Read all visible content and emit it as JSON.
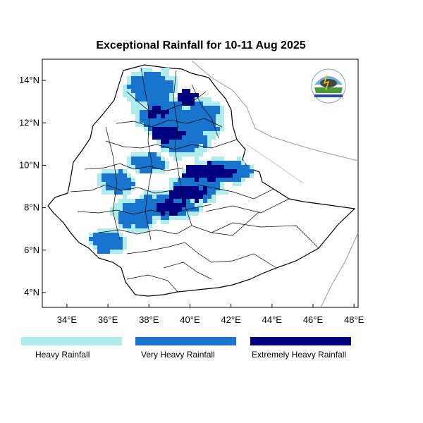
{
  "map": {
    "title": "Exceptional Rainfall for 10-11 Aug 2025",
    "lat_ticks": [
      "4°N",
      "6°N",
      "8°N",
      "10°N",
      "12°N",
      "14°N"
    ],
    "lon_ticks": [
      "34°E",
      "36°E",
      "38°E",
      "40°E",
      "42°E",
      "44°E",
      "46°E",
      "48°E"
    ],
    "lon_range": [
      32.8,
      48.2
    ],
    "lat_range": [
      3.3,
      15.0
    ],
    "logo_label": "ethiopia-meteorology-institute-logo"
  },
  "legend": [
    {
      "label": "Heavy Rainfall",
      "color": "#aeecee"
    },
    {
      "label": "Very Heavy Rainfall",
      "color": "#1874cd"
    },
    {
      "label": "Extremely Heavy Rainfall",
      "color": "#000080"
    }
  ]
}
